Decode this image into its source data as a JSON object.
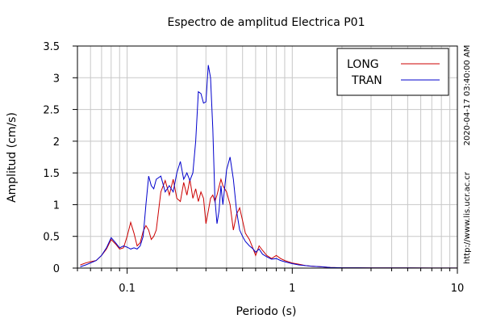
{
  "chart_data": {
    "type": "line",
    "title": "Espectro de amplitud Electrica P01",
    "xlabel": "Periodo (s)",
    "ylabel": "Amplitud (cm/s)",
    "x_scale": "log",
    "xlim": [
      0.05,
      10
    ],
    "ylim": [
      0,
      3.5
    ],
    "x_ticks": [
      {
        "value": 0.1,
        "label": "0.1"
      },
      {
        "value": 1,
        "label": "1"
      },
      {
        "value": 10,
        "label": "10"
      }
    ],
    "y_ticks": [
      {
        "value": 0,
        "label": "0"
      },
      {
        "value": 0.5,
        "label": "0.5"
      },
      {
        "value": 1,
        "label": "1"
      },
      {
        "value": 1.5,
        "label": "1.5"
      },
      {
        "value": 2,
        "label": "2"
      },
      {
        "value": 2.5,
        "label": "2.5"
      },
      {
        "value": 3,
        "label": "3"
      },
      {
        "value": 3.5,
        "label": "3.5"
      }
    ],
    "grid": true,
    "legend_position": "top-right",
    "series": [
      {
        "name": "LONG",
        "color": "#cc0000",
        "x": [
          0.052,
          0.056,
          0.06,
          0.065,
          0.07,
          0.075,
          0.08,
          0.085,
          0.09,
          0.095,
          0.1,
          0.105,
          0.11,
          0.115,
          0.12,
          0.125,
          0.13,
          0.135,
          0.14,
          0.145,
          0.15,
          0.16,
          0.17,
          0.18,
          0.19,
          0.2,
          0.21,
          0.22,
          0.23,
          0.24,
          0.25,
          0.26,
          0.27,
          0.28,
          0.29,
          0.3,
          0.31,
          0.32,
          0.33,
          0.34,
          0.35,
          0.36,
          0.37,
          0.38,
          0.4,
          0.42,
          0.44,
          0.46,
          0.48,
          0.5,
          0.52,
          0.55,
          0.58,
          0.6,
          0.63,
          0.66,
          0.7,
          0.75,
          0.8,
          0.85,
          0.9,
          1.0,
          1.1,
          1.2,
          1.3,
          1.5,
          1.7,
          2.0,
          2.5,
          3.0,
          4.0,
          5.0,
          7.0,
          10.0
        ],
        "y": [
          0.05,
          0.08,
          0.1,
          0.12,
          0.2,
          0.3,
          0.45,
          0.38,
          0.3,
          0.32,
          0.5,
          0.72,
          0.55,
          0.35,
          0.4,
          0.58,
          0.67,
          0.6,
          0.45,
          0.5,
          0.6,
          1.2,
          1.38,
          1.15,
          1.4,
          1.1,
          1.05,
          1.35,
          1.15,
          1.4,
          1.1,
          1.25,
          1.05,
          1.2,
          1.1,
          0.7,
          0.9,
          1.1,
          1.15,
          1.05,
          1.15,
          1.28,
          1.4,
          1.3,
          1.2,
          1.0,
          0.6,
          0.85,
          0.95,
          0.75,
          0.55,
          0.45,
          0.3,
          0.2,
          0.35,
          0.28,
          0.2,
          0.15,
          0.2,
          0.15,
          0.12,
          0.08,
          0.06,
          0.04,
          0.03,
          0.02,
          0.01,
          0.005,
          0.005,
          0.003,
          0.002,
          0.002,
          0.001,
          0.001
        ]
      },
      {
        "name": "TRAN",
        "color": "#0000cc",
        "x": [
          0.052,
          0.056,
          0.06,
          0.065,
          0.07,
          0.075,
          0.08,
          0.085,
          0.09,
          0.095,
          0.1,
          0.105,
          0.11,
          0.115,
          0.12,
          0.125,
          0.13,
          0.135,
          0.14,
          0.145,
          0.15,
          0.16,
          0.17,
          0.18,
          0.19,
          0.2,
          0.21,
          0.22,
          0.23,
          0.24,
          0.25,
          0.26,
          0.27,
          0.28,
          0.29,
          0.3,
          0.31,
          0.32,
          0.33,
          0.34,
          0.35,
          0.36,
          0.37,
          0.38,
          0.4,
          0.42,
          0.44,
          0.46,
          0.48,
          0.5,
          0.52,
          0.55,
          0.58,
          0.6,
          0.63,
          0.66,
          0.7,
          0.75,
          0.8,
          0.85,
          0.9,
          1.0,
          1.1,
          1.2,
          1.3,
          1.5,
          1.7,
          2.0,
          2.5,
          3.0,
          4.0,
          5.0,
          7.0,
          10.0
        ],
        "y": [
          0.02,
          0.05,
          0.08,
          0.12,
          0.2,
          0.32,
          0.48,
          0.4,
          0.32,
          0.35,
          0.33,
          0.3,
          0.32,
          0.3,
          0.35,
          0.5,
          1.0,
          1.45,
          1.3,
          1.25,
          1.4,
          1.45,
          1.2,
          1.3,
          1.2,
          1.5,
          1.68,
          1.4,
          1.5,
          1.38,
          1.5,
          2.0,
          2.78,
          2.75,
          2.6,
          2.62,
          3.2,
          3.0,
          2.2,
          1.1,
          0.7,
          0.9,
          1.3,
          1.0,
          1.55,
          1.75,
          1.4,
          0.9,
          0.6,
          0.5,
          0.42,
          0.35,
          0.3,
          0.25,
          0.3,
          0.22,
          0.18,
          0.14,
          0.15,
          0.12,
          0.1,
          0.07,
          0.05,
          0.04,
          0.03,
          0.02,
          0.01,
          0.005,
          0.005,
          0.003,
          0.002,
          0.002,
          0.001,
          0.001
        ]
      }
    ]
  },
  "side_text": {
    "timestamp": "2020-04-17 03:40:00 AM",
    "url": "http://www.lis.ucr.ac.cr"
  }
}
